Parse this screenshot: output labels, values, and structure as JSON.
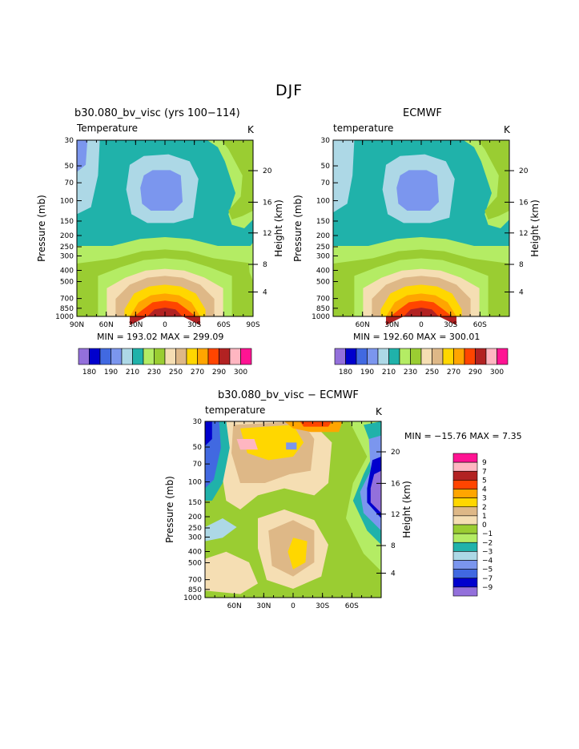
{
  "title": "DJF",
  "colors": {
    "temp_levels": [
      "#9370db",
      "#0000cd",
      "#4169e1",
      "#7b96ee",
      "#add8e6",
      "#20b2aa",
      "#b4ec64",
      "#9acd32",
      "#f5deb3",
      "#deb887",
      "#ffd700",
      "#ffa500",
      "#ff4500",
      "#b22222",
      "#ffb6c1",
      "#ff1493"
    ],
    "diff_levels": [
      "#ff1493",
      "#ffb6c1",
      "#b22222",
      "#ff4500",
      "#ffa500",
      "#ffd700",
      "#deb887",
      "#f5deb3",
      "#9acd32",
      "#b4ec64",
      "#20b2aa",
      "#add8e6",
      "#7b96ee",
      "#4169e1",
      "#0000cd",
      "#9370db"
    ]
  },
  "chart_data": [
    {
      "type": "contour",
      "title": "b30.080_bv_visc (yrs 100−114)",
      "subtitle_left": "Temperature",
      "subtitle_right": "K",
      "ylabel": "Pressure (mb)",
      "ylabel_right": "Height (km)",
      "x_ticks": [
        "90N",
        "60N",
        "30N",
        "0",
        "30S",
        "60S",
        "90S"
      ],
      "y_ticks": [
        "30",
        "50",
        "70",
        "100",
        "150",
        "200",
        "250",
        "300",
        "400",
        "500",
        "700",
        "850",
        "1000"
      ],
      "height_ticks": [
        "20",
        "16",
        "12",
        "8",
        "4"
      ],
      "min_max": "MIN = 193.02   MAX = 299.09",
      "min": 193.02,
      "max": 299.09
    },
    {
      "type": "contour",
      "title": "ECMWF",
      "subtitle_left": "temperature",
      "subtitle_right": "K",
      "ylabel": "Pressure (mb)",
      "ylabel_right": "Height (km)",
      "x_ticks": [
        "60N",
        "30N",
        "0",
        "30S",
        "60S"
      ],
      "y_ticks": [
        "30",
        "50",
        "70",
        "100",
        "150",
        "200",
        "250",
        "300",
        "400",
        "500",
        "700",
        "850",
        "1000"
      ],
      "height_ticks": [
        "20",
        "16",
        "12",
        "8",
        "4"
      ],
      "min_max": "MIN = 192.60   MAX = 300.01",
      "min": 192.6,
      "max": 300.01
    },
    {
      "type": "contour",
      "title": "b30.080_bv_visc − ECMWF",
      "subtitle_left": "temperature",
      "subtitle_right": "K",
      "ylabel": "Pressure (mb)",
      "ylabel_right": "Height (km)",
      "x_ticks": [
        "60N",
        "30N",
        "0",
        "30S",
        "60S"
      ],
      "y_ticks": [
        "30",
        "50",
        "70",
        "100",
        "150",
        "200",
        "250",
        "300",
        "400",
        "500",
        "700",
        "850",
        "1000"
      ],
      "height_ticks": [
        "20",
        "16",
        "12",
        "8",
        "4"
      ],
      "min_max": "MIN = −15.76   MAX =    7.35",
      "min": -15.76,
      "max": 7.35
    }
  ],
  "temp_colorbar_labels": [
    "180",
    "190",
    "210",
    "230",
    "250",
    "270",
    "290",
    "300"
  ],
  "diff_colorbar_labels": [
    "9",
    "7",
    "5",
    "4",
    "3",
    "2",
    "1",
    "0",
    "−1",
    "−2",
    "−3",
    "−4",
    "−5",
    "−7",
    "−9"
  ]
}
